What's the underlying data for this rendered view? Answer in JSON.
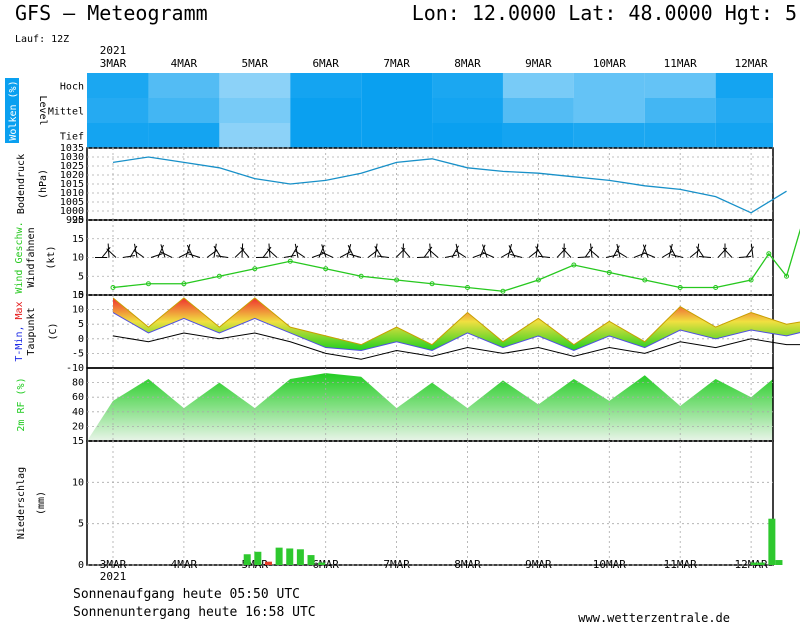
{
  "header": {
    "title": "GFS – Meteogramm",
    "location": "Lon: 12.0000  Lat: 48.0000  Hgt: 5",
    "run": "Lauf: 12Z"
  },
  "footer": {
    "sunrise": "Sonnenaufgang heute 05:50 UTC",
    "sunset": "Sonnenuntergang heute 16:58 UTC",
    "site": "www.wetterzentrale.de"
  },
  "colors": {
    "cloud": "#0aa0f0",
    "pressure": "#1890c8",
    "wind_speed": "#26c81e",
    "tmin_label": "#1e2ce6",
    "tmax_label": "#e41818",
    "humidity": "#22cc22",
    "precip": "#2ec82e",
    "precip_alt": "#e43c28"
  },
  "chart_data": [
    {
      "type": "heatmap",
      "panel": "clouds",
      "ylabel": "Wolken (%)",
      "levels": [
        "Hoch",
        "Mittel",
        "Tief"
      ],
      "level_axis_label": "Level",
      "note": "cloud cover fraction per level per day (0-1)",
      "x": [
        "3MAR",
        "4MAR",
        "5MAR",
        "6MAR",
        "7MAR",
        "8MAR",
        "9MAR",
        "10MAR",
        "11MAR",
        "12MAR"
      ],
      "values": {
        "Hoch": [
          0.9,
          0.6,
          0.3,
          0.95,
          1.0,
          0.9,
          0.4,
          0.5,
          0.5,
          0.95
        ],
        "Mittel": [
          0.85,
          0.7,
          0.4,
          1.0,
          1.0,
          0.95,
          0.6,
          0.5,
          0.7,
          0.85
        ],
        "Tief": [
          0.95,
          0.95,
          0.3,
          1.0,
          1.0,
          1.0,
          0.95,
          0.9,
          0.9,
          0.95
        ]
      }
    },
    {
      "type": "line",
      "panel": "pressure",
      "ylabel": "Bodendruck",
      "unit": "(hPa)",
      "ylim": [
        995,
        1035
      ],
      "yticks": [
        995,
        1000,
        1005,
        1010,
        1015,
        1020,
        1025,
        1030,
        1035
      ],
      "x": [
        0,
        0.5,
        1,
        1.5,
        2,
        2.5,
        3,
        3.5,
        4,
        4.5,
        5,
        5.5,
        6,
        6.5,
        7,
        7.5,
        8,
        8.5,
        9,
        9.5
      ],
      "values": [
        1027,
        1030,
        1027,
        1024,
        1018,
        1015,
        1017,
        1021,
        1027,
        1029,
        1024,
        1022,
        1021,
        1019,
        1017,
        1014,
        1012,
        1008,
        999,
        1011
      ]
    },
    {
      "type": "line",
      "panel": "wind",
      "ylabel": "Wind Geschw.",
      "ylabel2": "Windfahnen",
      "unit": "(kt)",
      "ylim": [
        0,
        20
      ],
      "yticks": [
        0,
        5,
        10,
        15,
        20
      ],
      "x": [
        0,
        0.5,
        1,
        1.5,
        2,
        2.5,
        3,
        3.5,
        4,
        4.5,
        5,
        5.5,
        6,
        6.5,
        7,
        7.5,
        8,
        8.5,
        9,
        9.25,
        9.5,
        9.75,
        10
      ],
      "values": [
        2,
        3,
        3,
        5,
        7,
        9,
        7,
        5,
        4,
        3,
        2,
        1,
        4,
        8,
        6,
        4,
        2,
        2,
        4,
        11,
        5,
        21,
        15
      ],
      "barbs": "wind barbs shown at ~10 kt level"
    },
    {
      "type": "area",
      "panel": "temperature",
      "ylabel": "T-Min, Max",
      "ylabel2": "Taupunkt",
      "unit": "(C)",
      "ylim": [
        -10,
        15
      ],
      "yticks": [
        -10,
        -5,
        0,
        5,
        10,
        15
      ],
      "x": [
        0,
        0.5,
        1,
        1.5,
        2,
        2.5,
        3,
        3.5,
        4,
        4.5,
        5,
        5.5,
        6,
        6.5,
        7,
        7.5,
        8,
        8.5,
        9,
        9.5,
        10
      ],
      "series": [
        {
          "name": "T-Max",
          "values": [
            14,
            4,
            14,
            4,
            14,
            4,
            1,
            -2,
            4,
            -2,
            9,
            -1,
            7,
            -2,
            6,
            -1,
            11,
            4,
            9,
            5,
            7
          ]
        },
        {
          "name": "T-Min",
          "values": [
            9,
            2,
            7,
            2,
            7,
            2,
            -3,
            -4,
            -1,
            -4,
            2,
            -3,
            1,
            -4,
            1,
            -3,
            3,
            0,
            3,
            1,
            4
          ]
        },
        {
          "name": "Taupunkt",
          "values": [
            1,
            -1,
            2,
            0,
            2,
            -1,
            -5,
            -7,
            -4,
            -6,
            -3,
            -5,
            -3,
            -6,
            -3,
            -5,
            -1,
            -3,
            0,
            -2,
            -2
          ]
        }
      ]
    },
    {
      "type": "area",
      "panel": "humidity",
      "ylabel": "2m RF (%)",
      "ylim": [
        0,
        100
      ],
      "yticks": [
        20,
        40,
        60,
        80
      ],
      "x": [
        0,
        0.5,
        1,
        1.5,
        2,
        2.5,
        3,
        3.5,
        4,
        4.5,
        5,
        5.5,
        6,
        6.5,
        7,
        7.5,
        8,
        8.5,
        9,
        9.5,
        10
      ],
      "values": [
        55,
        85,
        45,
        80,
        45,
        85,
        93,
        88,
        45,
        80,
        45,
        83,
        50,
        85,
        55,
        90,
        48,
        85,
        60,
        85,
        50
      ]
    },
    {
      "type": "bar",
      "panel": "precip",
      "ylabel": "Niederschlag",
      "unit": "(mm)",
      "ylim": [
        0,
        15
      ],
      "yticks": [
        0,
        5,
        10,
        15
      ],
      "x": [
        1.9,
        2.05,
        2.2,
        2.35,
        2.5,
        2.65,
        2.8,
        2.95,
        9.05,
        9.15,
        9.3,
        9.4
      ],
      "values": [
        1.3,
        1.6,
        0.4,
        2.1,
        2.0,
        1.9,
        1.2,
        0.3,
        0.3,
        0.3,
        5.6,
        0.6
      ]
    }
  ],
  "xaxis": {
    "labels": [
      "3MAR",
      "4MAR",
      "5MAR",
      "6MAR",
      "7MAR",
      "8MAR",
      "9MAR",
      "10MAR",
      "11MAR",
      "12MAR"
    ],
    "year": "2021"
  }
}
